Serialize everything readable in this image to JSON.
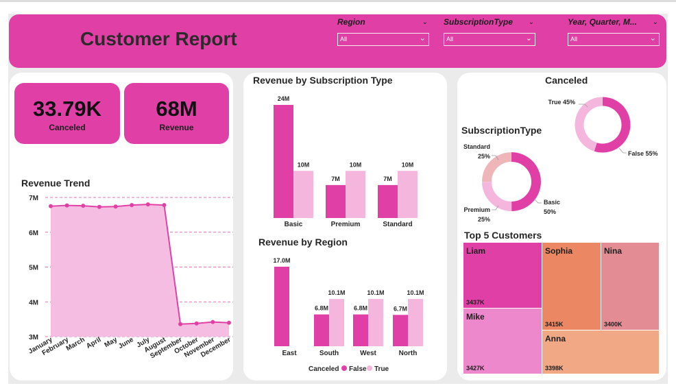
{
  "report": {
    "title": "Customer Report"
  },
  "slicers": [
    {
      "label": "Region",
      "value": "All"
    },
    {
      "label": "SubscriptionType",
      "value": "All"
    },
    {
      "label": "Year, Quarter, M...",
      "value": "All"
    }
  ],
  "kpis": [
    {
      "value": "33.79K",
      "label": "Canceled"
    },
    {
      "value": "68M",
      "label": "Revenue"
    }
  ],
  "colors": {
    "accent": "#e040a6",
    "light": "#f4b6dd",
    "area": "#f6bde2"
  },
  "chart_data": [
    {
      "id": "trend",
      "type": "area",
      "title": "Revenue Trend",
      "x": [
        "January",
        "February",
        "March",
        "April",
        "May",
        "June",
        "July",
        "August",
        "September",
        "October",
        "November",
        "December"
      ],
      "values": [
        6.75,
        6.77,
        6.76,
        6.73,
        6.74,
        6.78,
        6.8,
        6.78,
        3.36,
        3.38,
        3.42,
        3.4
      ],
      "ylim": [
        3,
        7
      ],
      "yticks": [
        3,
        4,
        5,
        6,
        7
      ],
      "ytick_labels": [
        "3M",
        "4M",
        "5M",
        "6M",
        "7M"
      ],
      "grid": true
    },
    {
      "id": "subscription",
      "type": "bar",
      "title": "Revenue by Subscription Type",
      "categories": [
        "Basic",
        "Premium",
        "Standard"
      ],
      "series": [
        {
          "name": "False",
          "values": [
            24,
            7,
            7
          ],
          "labels": [
            "24M",
            "7M",
            "7M"
          ]
        },
        {
          "name": "True",
          "values": [
            10,
            10,
            10
          ],
          "labels": [
            "10M",
            "10M",
            "10M"
          ]
        }
      ],
      "ylim": [
        0,
        24
      ]
    },
    {
      "id": "region",
      "type": "bar",
      "title": "Revenue by Region",
      "categories": [
        "East",
        "South",
        "West",
        "North"
      ],
      "series": [
        {
          "name": "False",
          "values": [
            17.0,
            6.8,
            6.8,
            6.7
          ],
          "labels": [
            "17.0M",
            "6.8M",
            "6.8M",
            "6.7M"
          ]
        },
        {
          "name": "True",
          "values": [
            0,
            10.1,
            10.1,
            10.1
          ],
          "labels": [
            "",
            "10.1M",
            "10.1M",
            "10.1M"
          ]
        }
      ],
      "ylim": [
        0,
        17
      ],
      "legend": {
        "title": "Canceled",
        "items": [
          "False",
          "True"
        ],
        "position": "bottom"
      }
    },
    {
      "id": "canceled",
      "type": "pie",
      "title": "Canceled",
      "slices": [
        {
          "name": "False",
          "value": 55,
          "label": "False 55%"
        },
        {
          "name": "True",
          "value": 45,
          "label": "True 45%"
        }
      ]
    },
    {
      "id": "subtype",
      "type": "pie",
      "title": "SubscriptionType",
      "slices": [
        {
          "name": "Basic",
          "value": 50,
          "label_name": "Basic",
          "label_pct": "50%"
        },
        {
          "name": "Premium",
          "value": 25,
          "label_name": "Premium",
          "label_pct": "25%"
        },
        {
          "name": "Standard",
          "value": 25,
          "label_name": "Standard",
          "label_pct": "25%"
        }
      ]
    },
    {
      "id": "top5",
      "type": "treemap",
      "title": "Top 5 Customers",
      "items": [
        {
          "name": "Liam",
          "value": 3437,
          "label": "3437K",
          "color": "#e040a6"
        },
        {
          "name": "Mike",
          "value": 3427,
          "label": "3427K",
          "color": "#ec88cb"
        },
        {
          "name": "Sophia",
          "value": 3415,
          "label": "3415K",
          "color": "#eb8762"
        },
        {
          "name": "Nina",
          "value": 3400,
          "label": "3400K",
          "color": "#e38c94"
        },
        {
          "name": "Anna",
          "value": 3398,
          "label": "3398K",
          "color": "#f0a885"
        }
      ]
    }
  ]
}
